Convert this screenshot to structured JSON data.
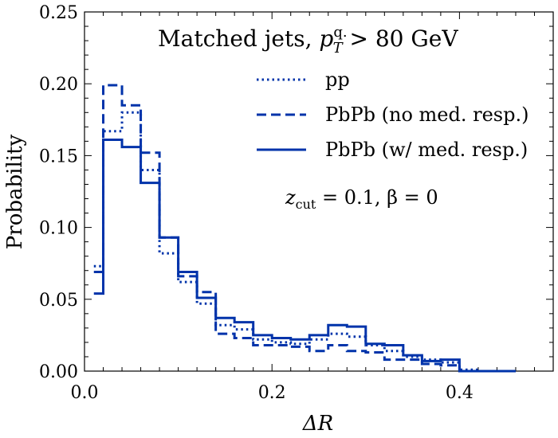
{
  "chart_data": {
    "type": "line",
    "title": "Matched jets, p_T^{q.} > 80 GeV",
    "title_parts": {
      "prefix": "Matched jets, ",
      "var": "p",
      "sub": "T",
      "sup": "q.",
      "suffix": " > 80 GeV"
    },
    "xlabel": "ΔR",
    "ylabel": "Probability",
    "xlim": [
      0.0,
      0.5
    ],
    "ylim": [
      0.0,
      0.25
    ],
    "xticks": [
      "0.0",
      "0.2",
      "0.4"
    ],
    "xtick_values": [
      0.0,
      0.2,
      0.4
    ],
    "yticks": [
      "0.00",
      "0.05",
      "0.10",
      "0.15",
      "0.20",
      "0.25"
    ],
    "ytick_values": [
      0.0,
      0.05,
      0.1,
      0.15,
      0.2,
      0.25
    ],
    "annotation": {
      "z": "z",
      "zsub": "cut",
      "rest": " = 0.1, β = 0"
    },
    "bin_edges": [
      0.01,
      0.02,
      0.04,
      0.06,
      0.08,
      0.1,
      0.12,
      0.14,
      0.16,
      0.18,
      0.2,
      0.22,
      0.24,
      0.26,
      0.28,
      0.3,
      0.32,
      0.34,
      0.36,
      0.38,
      0.4,
      0.42,
      0.44,
      0.46
    ],
    "color": "#0033aa",
    "series": [
      {
        "name": "pp",
        "style": "dotted",
        "values": [
          0.073,
          0.167,
          0.18,
          0.14,
          0.082,
          0.062,
          0.047,
          0.032,
          0.029,
          0.022,
          0.02,
          0.019,
          0.022,
          0.026,
          0.024,
          0.018,
          0.014,
          0.01,
          0.008,
          0.006,
          0.001,
          0.0,
          0.0
        ]
      },
      {
        "name": "PbPb (no med. resp.)",
        "style": "dashed",
        "values": [
          0.069,
          0.199,
          0.185,
          0.152,
          0.093,
          0.066,
          0.055,
          0.026,
          0.023,
          0.018,
          0.018,
          0.017,
          0.014,
          0.018,
          0.014,
          0.013,
          0.008,
          0.008,
          0.005,
          0.004,
          0.0,
          0.0,
          0.0
        ]
      },
      {
        "name": "PbPb (w/ med. resp.)",
        "style": "solid",
        "values": [
          0.054,
          0.161,
          0.156,
          0.131,
          0.093,
          0.069,
          0.051,
          0.037,
          0.034,
          0.025,
          0.023,
          0.022,
          0.025,
          0.032,
          0.031,
          0.019,
          0.018,
          0.011,
          0.007,
          0.008,
          0.0,
          0.0,
          0.0
        ]
      }
    ],
    "legend_position": "upper-right"
  }
}
